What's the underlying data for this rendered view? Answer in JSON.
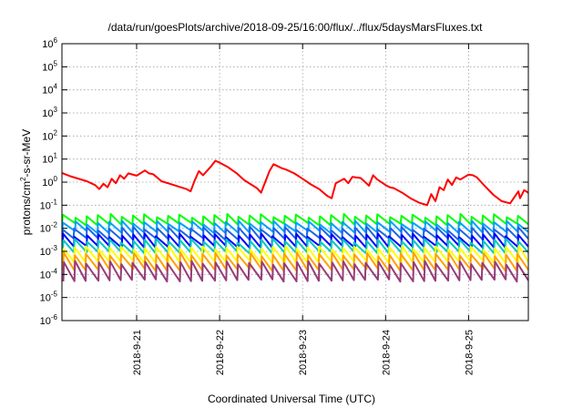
{
  "chart_data": {
    "type": "line",
    "title": "/data/run/goesPlots/archive/2018-09-25/16:00/flux/../flux/5daysMarsFluxes.txt",
    "xlabel": "Coordinated Universal Time (UTC)",
    "ylabel": {
      "base": "protons/cm",
      "sup": "2",
      "rest": "-s-sr-MeV"
    },
    "y_scale": "log",
    "ylim": [
      1e-06,
      1000000.0
    ],
    "xlim_days": [
      20.1,
      25.72
    ],
    "grid": true,
    "legend": "none",
    "y_ticks": [
      {
        "base": "10",
        "exp": "6",
        "value": 1000000.0
      },
      {
        "base": "10",
        "exp": "5",
        "value": 100000.0
      },
      {
        "base": "10",
        "exp": "4",
        "value": 10000.0
      },
      {
        "base": "10",
        "exp": "3",
        "value": 1000.0
      },
      {
        "base": "10",
        "exp": "2",
        "value": 100.0
      },
      {
        "base": "10",
        "exp": "1",
        "value": 10.0
      },
      {
        "base": "10",
        "exp": "0",
        "value": 1.0
      },
      {
        "base": "10",
        "exp": "-1",
        "value": 0.1
      },
      {
        "base": "10",
        "exp": "-2",
        "value": 0.01
      },
      {
        "base": "10",
        "exp": "-3",
        "value": 0.001
      },
      {
        "base": "10",
        "exp": "-4",
        "value": 0.0001
      },
      {
        "base": "10",
        "exp": "-5",
        "value": 1e-05
      },
      {
        "base": "10",
        "exp": "-6",
        "value": 1e-06
      }
    ],
    "x_ticks": [
      {
        "label": "2018-9-21",
        "day": 21
      },
      {
        "label": "2018-9-22",
        "day": 22
      },
      {
        "label": "2018-9-23",
        "day": 23
      },
      {
        "label": "2018-9-24",
        "day": 24
      },
      {
        "label": "2018-9-25",
        "day": 25
      }
    ],
    "series": [
      {
        "color": "#ff0000",
        "x": [
          20.1,
          20.2,
          20.4,
          20.5,
          20.55,
          20.6,
          20.65,
          20.7,
          20.75,
          20.8,
          20.85,
          20.9,
          21.0,
          21.1,
          21.15,
          21.2,
          21.3,
          21.4,
          21.5,
          21.6,
          21.65,
          21.7,
          21.75,
          21.8,
          21.9,
          21.95,
          22.0,
          22.1,
          22.2,
          22.3,
          22.45,
          22.5,
          22.6,
          22.65,
          22.75,
          22.8,
          22.9,
          23.0,
          23.1,
          23.2,
          23.3,
          23.35,
          23.4,
          23.5,
          23.55,
          23.6,
          23.7,
          23.8,
          23.85,
          23.9,
          24.0,
          24.05,
          24.1,
          24.2,
          24.3,
          24.4,
          24.5,
          24.55,
          24.6,
          24.65,
          24.7,
          24.75,
          24.8,
          24.85,
          24.9,
          25.0,
          25.05,
          25.1,
          25.2,
          25.3,
          25.4,
          25.5,
          25.6,
          25.62,
          25.67,
          25.72
        ],
        "y": [
          2.5,
          1.8,
          1.1,
          0.75,
          0.5,
          0.85,
          0.6,
          1.4,
          0.9,
          2.0,
          1.4,
          2.4,
          1.9,
          3.2,
          2.4,
          2.2,
          1.1,
          0.85,
          0.65,
          0.5,
          0.4,
          1.2,
          3.0,
          2.0,
          5.0,
          8.5,
          7.0,
          4.5,
          2.5,
          1.2,
          0.55,
          0.35,
          3.0,
          6.0,
          4.0,
          3.5,
          2.4,
          1.4,
          0.8,
          0.5,
          0.25,
          0.2,
          0.9,
          1.4,
          0.9,
          1.7,
          1.5,
          0.7,
          2.0,
          1.3,
          0.75,
          0.6,
          0.55,
          0.35,
          0.2,
          0.13,
          0.1,
          0.3,
          0.15,
          0.6,
          0.45,
          1.3,
          0.75,
          1.6,
          1.3,
          2.1,
          2.0,
          1.6,
          0.65,
          0.28,
          0.15,
          0.12,
          0.4,
          0.2,
          0.45,
          0.35
        ]
      },
      {
        "color": "#00ff00",
        "base": 0.015,
        "amp": 2.4,
        "spikes": 40
      },
      {
        "color": "#00a0ff",
        "base": 0.007,
        "amp": 2.6,
        "spikes": 40
      },
      {
        "color": "#1e64e6",
        "base": 0.0035,
        "amp": 2.9,
        "spikes": 40
      },
      {
        "color": "#0000ff",
        "base": 0.0016,
        "amp": 3.2,
        "spikes": 40
      },
      {
        "color": "#00c8c0",
        "base": 0.0009,
        "amp": 3.4,
        "spikes": 40
      },
      {
        "color": "#ffff00",
        "base": 0.00035,
        "amp": 4.2,
        "spikes": 40
      },
      {
        "color": "#ffa000",
        "base": 0.00016,
        "amp": 4.8,
        "spikes": 40
      },
      {
        "color": "#963c7a",
        "base": 5.5e-05,
        "amp": 6.0,
        "spikes": 40
      }
    ]
  }
}
